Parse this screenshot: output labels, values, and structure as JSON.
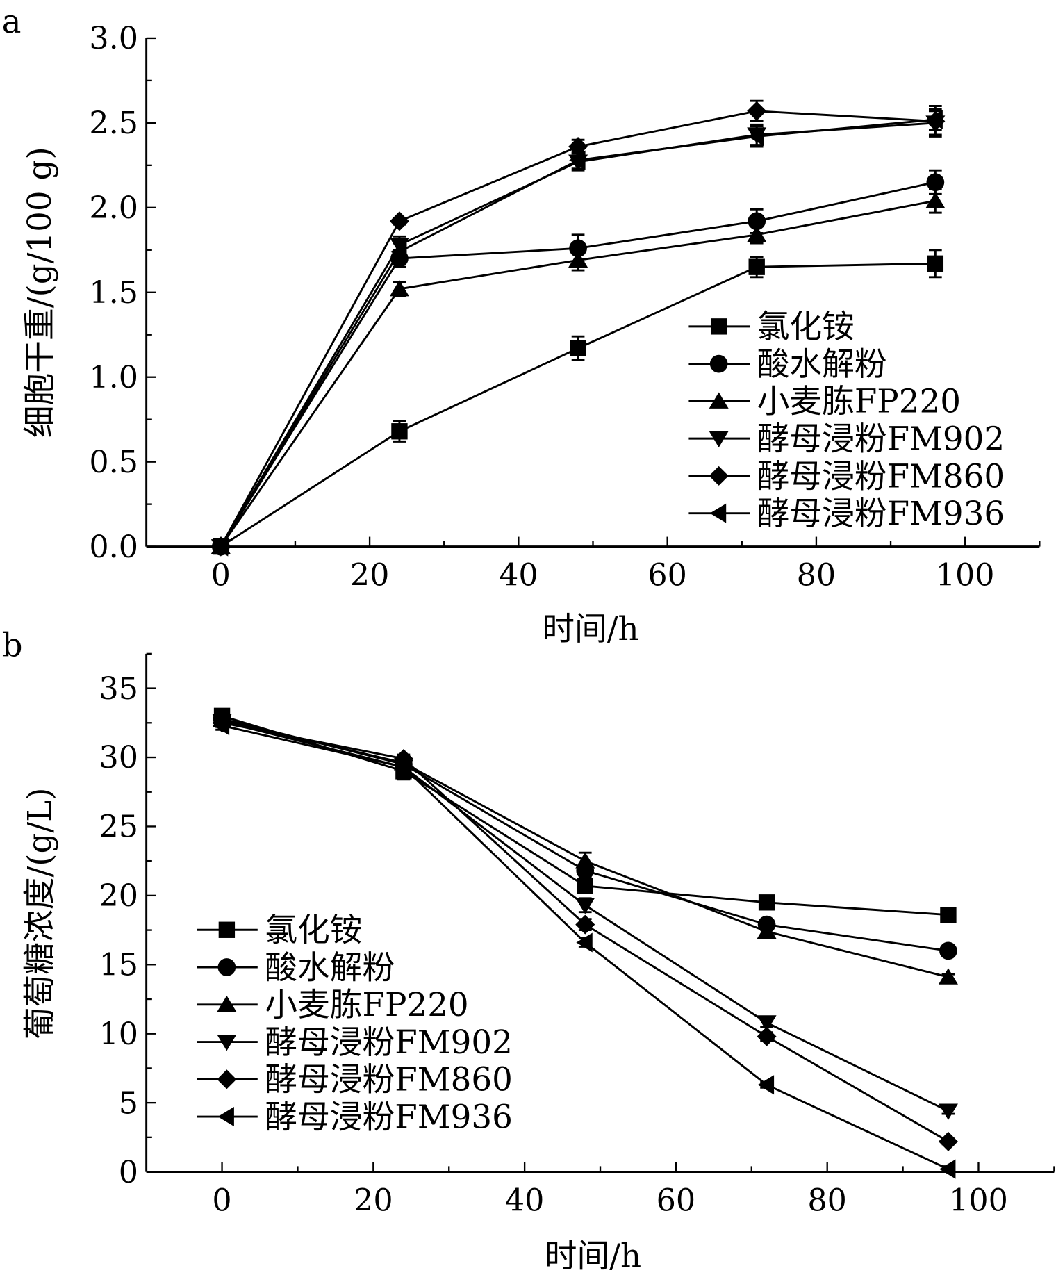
{
  "chart_data": [
    {
      "type": "line",
      "panel_label": "a",
      "xlabel": "时间/h",
      "ylabel": "细胞干重/(g/100 g)",
      "xlim": [
        -10,
        110
      ],
      "ylim": [
        0,
        3.0
      ],
      "xticks": [
        0,
        20,
        40,
        60,
        80,
        100
      ],
      "xtick_labels": [
        "0",
        "20",
        "40",
        "60",
        "80",
        "100"
      ],
      "yticks": [
        0,
        0.5,
        1.0,
        1.5,
        2.0,
        2.5,
        3.0
      ],
      "ytick_labels": [
        "0.0",
        "0.5",
        "1.0",
        "1.5",
        "2.0",
        "2.5",
        "3.0"
      ],
      "legend_position": "lower-right",
      "x": [
        0,
        24,
        48,
        72,
        96
      ],
      "series": [
        {
          "name": "氯化铵",
          "marker": "square",
          "values": [
            0,
            0.68,
            1.17,
            1.65,
            1.67
          ],
          "error": [
            0,
            0.06,
            0.07,
            0.06,
            0.08
          ]
        },
        {
          "name": "酸水解粉",
          "marker": "circle",
          "values": [
            0,
            1.7,
            1.76,
            1.92,
            2.15
          ],
          "error": [
            0,
            0.05,
            0.08,
            0.07,
            0.07
          ]
        },
        {
          "name": "小麦胨FP220",
          "marker": "triangle-up",
          "values": [
            0,
            1.52,
            1.69,
            1.84,
            2.04
          ],
          "error": [
            0,
            0.04,
            0.06,
            0.05,
            0.07
          ]
        },
        {
          "name": "酵母浸粉FM902",
          "marker": "triangle-down",
          "values": [
            0,
            1.78,
            2.27,
            2.43,
            2.5
          ],
          "error": [
            0,
            0.05,
            0.05,
            0.06,
            0.07
          ]
        },
        {
          "name": "酵母浸粉FM860",
          "marker": "diamond",
          "values": [
            0,
            1.92,
            2.36,
            2.57,
            2.51
          ],
          "error": [
            0,
            0.02,
            0.04,
            0.06,
            0.09
          ]
        },
        {
          "name": "酵母浸粉FM936",
          "marker": "triangle-left",
          "values": [
            0,
            1.74,
            2.28,
            2.42,
            2.52
          ],
          "error": [
            0,
            0.05,
            0.05,
            0.06,
            0.06
          ]
        }
      ]
    },
    {
      "type": "line",
      "panel_label": "b",
      "xlabel": "时间/h",
      "ylabel": "葡萄糖浓度/(g/L)",
      "xlim": [
        -10,
        110
      ],
      "ylim": [
        0,
        37.5
      ],
      "xticks": [
        0,
        20,
        40,
        60,
        80,
        100
      ],
      "xtick_labels": [
        "0",
        "20",
        "40",
        "60",
        "80",
        "100"
      ],
      "yticks": [
        0,
        5,
        10,
        15,
        20,
        25,
        30,
        35
      ],
      "ytick_labels": [
        "0",
        "5",
        "10",
        "15",
        "20",
        "25",
        "30",
        "35"
      ],
      "legend_position": "lower-left",
      "x": [
        0,
        24,
        48,
        72,
        96
      ],
      "series": [
        {
          "name": "氯化铵",
          "marker": "square",
          "values": [
            33.0,
            29.0,
            20.7,
            19.5,
            18.6
          ],
          "error": [
            0.3,
            0.6,
            0.5,
            0.3,
            0.2
          ]
        },
        {
          "name": "酸水解粉",
          "marker": "circle",
          "values": [
            32.8,
            29.5,
            21.8,
            17.9,
            16.0
          ],
          "error": [
            0.3,
            0.4,
            0.5,
            0.3,
            0.2
          ]
        },
        {
          "name": "小麦胨FP220",
          "marker": "triangle-up",
          "values": [
            32.7,
            29.6,
            22.5,
            17.4,
            14.1
          ],
          "error": [
            0.3,
            0.4,
            0.6,
            0.3,
            0.2
          ]
        },
        {
          "name": "酵母浸粉FM902",
          "marker": "triangle-down",
          "values": [
            32.6,
            29.3,
            19.3,
            10.8,
            4.4
          ],
          "error": [
            0.3,
            0.4,
            0.5,
            0.3,
            0.2
          ]
        },
        {
          "name": "酵母浸粉FM860",
          "marker": "diamond",
          "values": [
            32.5,
            29.9,
            17.9,
            9.8,
            2.2
          ],
          "error": [
            0.3,
            0.3,
            0.4,
            0.3,
            0.2
          ]
        },
        {
          "name": "酵母浸粉FM936",
          "marker": "triangle-left",
          "values": [
            32.3,
            29.3,
            16.6,
            6.3,
            0.2
          ],
          "error": [
            0.3,
            0.4,
            0.3,
            0.2,
            0.2
          ]
        }
      ]
    }
  ]
}
